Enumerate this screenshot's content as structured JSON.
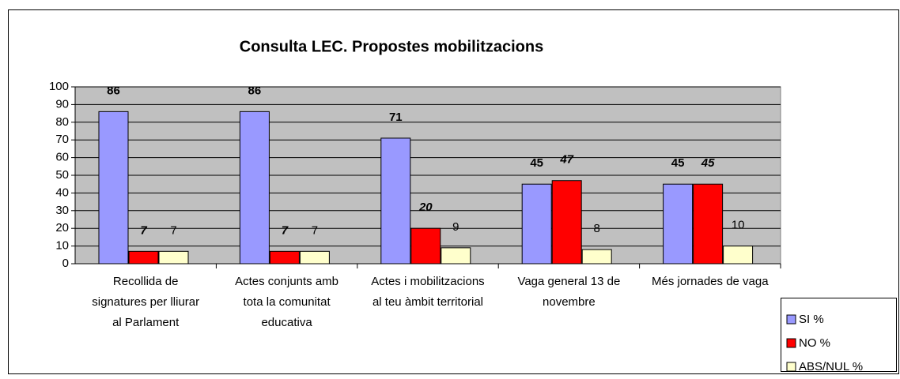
{
  "chart_data": {
    "type": "bar",
    "title": "Consulta LEC. Propostes mobilitzacions",
    "categories": [
      "Recollida de signatures per lliurar al Parlament",
      "Actes conjunts amb tota la comunitat educativa",
      "Actes i mobilitzacions al teu àmbit territorial",
      "Vaga general 13 de novembre",
      "Més jornades de vaga"
    ],
    "series": [
      {
        "name": "SI %",
        "color": "#9999ff",
        "values": [
          86,
          86,
          71,
          45,
          45
        ]
      },
      {
        "name": "NO %",
        "color": "#ff0000",
        "values": [
          7,
          7,
          20,
          47,
          45
        ]
      },
      {
        "name": "ABS/NUL %",
        "color": "#ffffcc",
        "values": [
          7,
          7,
          9,
          8,
          10
        ]
      }
    ],
    "ylim": [
      0,
      100
    ],
    "yticks": [
      0,
      10,
      20,
      30,
      40,
      50,
      60,
      70,
      80,
      90,
      100
    ],
    "grid": true,
    "legend": "bottom-right"
  }
}
